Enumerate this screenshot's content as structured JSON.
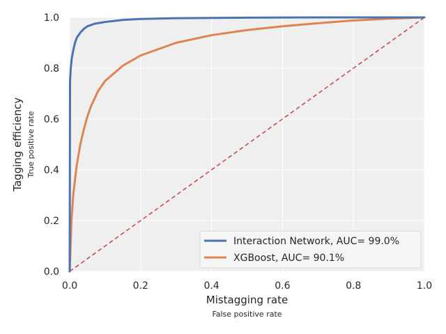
{
  "chart_data": {
    "type": "line",
    "xlabel": "Mistagging rate",
    "xlabel_sub": "False positive rate",
    "ylabel": "Tagging efficiency",
    "ylabel_sub": "True positive rate",
    "xlim": [
      0,
      1
    ],
    "ylim": [
      0,
      1
    ],
    "xticks": [
      "0.0",
      "0.2",
      "0.4",
      "0.6",
      "0.8",
      "1.0"
    ],
    "yticks": [
      "0.0",
      "0.2",
      "0.4",
      "0.6",
      "0.8",
      "1.0"
    ],
    "grid": true,
    "legend_position": "lower-right",
    "plot_background": "#efefef",
    "series": [
      {
        "name": "Interaction Network, AUC= 99.0%",
        "color": "#4c72b0",
        "x": [
          0,
          0.001,
          0.003,
          0.006,
          0.01,
          0.015,
          0.02,
          0.03,
          0.04,
          0.05,
          0.07,
          0.1,
          0.15,
          0.2,
          0.3,
          0.5,
          0.7,
          1.0
        ],
        "y": [
          0,
          0.75,
          0.8,
          0.84,
          0.87,
          0.9,
          0.92,
          0.94,
          0.955,
          0.965,
          0.975,
          0.982,
          0.99,
          0.994,
          0.997,
          0.999,
          1.0,
          1.0
        ]
      },
      {
        "name": "XGBoost, AUC= 90.1%",
        "color": "#dd8452",
        "x": [
          0,
          0.005,
          0.01,
          0.02,
          0.03,
          0.04,
          0.05,
          0.06,
          0.08,
          0.1,
          0.15,
          0.2,
          0.3,
          0.4,
          0.5,
          0.6,
          0.7,
          0.8,
          0.9,
          1.0
        ],
        "y": [
          0,
          0.2,
          0.3,
          0.42,
          0.5,
          0.56,
          0.61,
          0.65,
          0.71,
          0.75,
          0.81,
          0.85,
          0.9,
          0.93,
          0.95,
          0.965,
          0.977,
          0.988,
          0.995,
          1.0
        ]
      }
    ],
    "reference_line": {
      "color": "#c44e52",
      "x": [
        0,
        1
      ],
      "y": [
        0,
        1
      ]
    }
  }
}
